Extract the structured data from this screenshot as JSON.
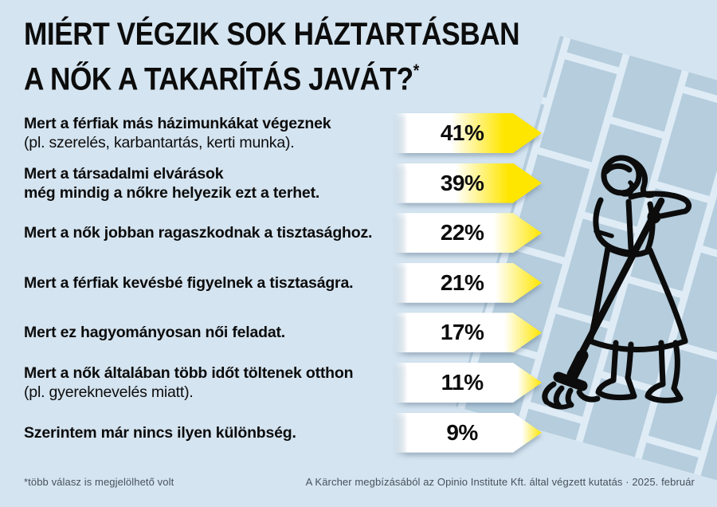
{
  "title": {
    "line1": "MIÉRT VÉGZIK SOK HÁZTARTÁSBAN",
    "line2": "A NŐK A TAKARÍTÁS JAVÁT?",
    "footnote_marker": "*"
  },
  "rows": [
    {
      "text": "Mert a férfiak más házimunkákat végeznek",
      "text2": "(pl. szerelés, karbantartás, kerti munka).",
      "text2_bold": false,
      "value": 41,
      "label": "41%"
    },
    {
      "text": "Mert a társadalmi elvárások",
      "text2": "még mindig a nőkre helyezik ezt a terhet.",
      "text2_bold": true,
      "value": 39,
      "label": "39%"
    },
    {
      "text": "Mert a nők jobban ragaszkodnak a tisztasághoz.",
      "text2": "",
      "text2_bold": false,
      "value": 22,
      "label": "22%"
    },
    {
      "text": "Mert a férfiak kevésbé figyelnek a tisztaságra.",
      "text2": "",
      "text2_bold": false,
      "value": 21,
      "label": "21%"
    },
    {
      "text": "Mert ez hagyományosan női feladat.",
      "text2": "",
      "text2_bold": false,
      "value": 17,
      "label": "17%"
    },
    {
      "text": "Mert a nők általában több időt töltenek otthon",
      "text2": "(pl. gyereknevelés miatt).",
      "text2_bold": false,
      "value": 11,
      "label": "11%"
    },
    {
      "text": "Szerintem már nincs ilyen különbség.",
      "text2": "",
      "text2_bold": false,
      "value": 9,
      "label": "9%"
    }
  ],
  "footer": {
    "left": "*több válasz is megjelölhető volt",
    "right": "A Kärcher megbízásából az Opinio Institute Kft. által végzett kutatás · 2025. február"
  },
  "colors": {
    "background": "#d4e4f0",
    "tile": "#b5cddd",
    "tile_line": "#dfecf6",
    "yellow": "#ffe600",
    "ink": "#0c0c0c",
    "footer_text": "#47525e"
  },
  "illustration": "woman-mopping-tiled-floor",
  "chart_data": {
    "type": "bar",
    "orientation": "horizontal",
    "title": "Miért végzik sok háztartásban a nők a takarítás javát?*",
    "categories": [
      "Mert a férfiak más házimunkákat végeznek (pl. szerelés, karbantartás, kerti munka).",
      "Mert a társadalmi elvárások még mindig a nőkre helyezik ezt a terhet.",
      "Mert a nők jobban ragaszkodnak a tisztasághoz.",
      "Mert a férfiak kevésbé figyelnek a tisztaságra.",
      "Mert ez hagyományosan női feladat.",
      "Mert a nők általában több időt töltenek otthon (pl. gyereknevelés miatt).",
      "Szerintem már nincs ilyen különbség."
    ],
    "values": [
      41,
      39,
      22,
      21,
      17,
      11,
      9
    ],
    "value_labels": [
      "41%",
      "39%",
      "22%",
      "21%",
      "17%",
      "11%",
      "9%"
    ],
    "unit": "%",
    "footnote": "*több válasz is megjelölhető volt",
    "source": "A Kärcher megbízásából az Opinio Institute Kft. által végzett kutatás · 2025. február",
    "legend": false,
    "grid": false
  }
}
